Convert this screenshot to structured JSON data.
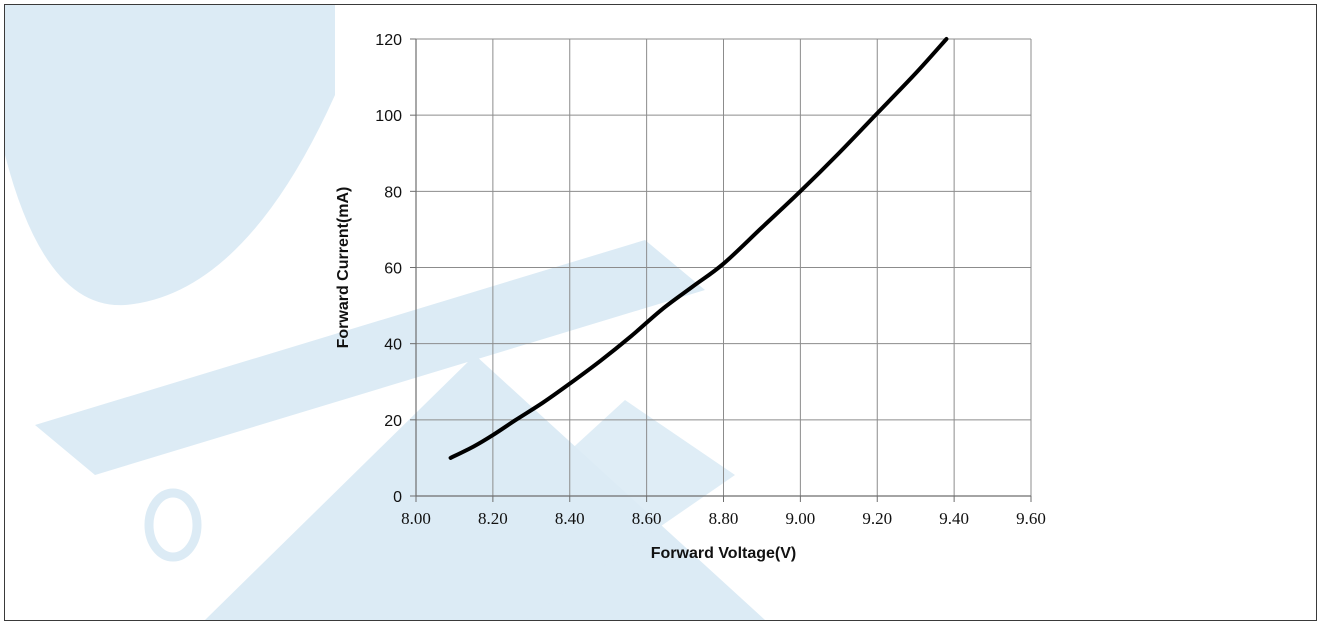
{
  "chart_data": {
    "type": "line",
    "title": "",
    "xlabel": "Forward Voltage(V)",
    "ylabel": "Forward Current(mA)",
    "xlim": [
      8.0,
      9.6
    ],
    "ylim": [
      0,
      120
    ],
    "x_ticks": [
      "8.00",
      "8.20",
      "8.40",
      "8.60",
      "8.80",
      "9.00",
      "9.20",
      "9.40",
      "9.60"
    ],
    "y_ticks": [
      "0",
      "20",
      "40",
      "60",
      "80",
      "100",
      "120"
    ],
    "grid": true,
    "legend": "none",
    "series": [
      {
        "color": "#000000",
        "x": [
          8.09,
          8.15,
          8.2,
          8.26,
          8.33,
          8.4,
          8.48,
          8.56,
          8.64,
          8.72,
          8.8,
          8.9,
          9.0,
          9.1,
          9.2,
          9.3,
          9.38
        ],
        "y": [
          10,
          13,
          16,
          20,
          24.5,
          29.5,
          35.5,
          42,
          49,
          55,
          61,
          70.5,
          80,
          90,
          100.5,
          111,
          120
        ]
      }
    ]
  },
  "colors": {
    "background": "#ffffff",
    "grid": "#8c8c8c",
    "axis": "#6e6e6e",
    "line": "#000000",
    "watermark": "#dcebf5"
  }
}
